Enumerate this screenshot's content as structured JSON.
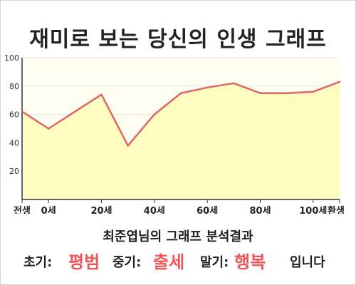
{
  "title": "재미로 보는 당신의 인생 그래프",
  "chart_data": {
    "type": "area",
    "x": [
      -10,
      0,
      20,
      30,
      40,
      50,
      60,
      70,
      80,
      90,
      100,
      110
    ],
    "values": [
      62,
      50,
      74,
      38,
      60,
      75,
      79,
      82,
      75,
      75,
      76,
      83
    ],
    "xlim": [
      -10,
      110
    ],
    "ylim": [
      0,
      100
    ],
    "yticks": [
      0,
      20,
      40,
      60,
      80,
      100
    ],
    "y_tick_labels": [
      "",
      "20",
      "40",
      "60",
      "80",
      "100"
    ],
    "x_tick_positions": [
      -10,
      0,
      20,
      40,
      60,
      80,
      100,
      110
    ],
    "x_tick_labels": [
      "전생",
      "0세",
      "20세",
      "40세",
      "60세",
      "80세",
      "100세",
      "환생"
    ],
    "grid": true,
    "colors": {
      "line": "#e0666a",
      "fill": "#fffcbf",
      "plot_bg": "#fffef0",
      "grid": "#e6e6e6",
      "axis": "#333333"
    }
  },
  "summary": "최준엽님의 그래프 분석결과",
  "result": {
    "early_label": "초기:",
    "early_value": "평범",
    "mid_label": "중기:",
    "mid_value": "출세",
    "late_label": "말기:",
    "late_value": "행복",
    "ending": "입니다",
    "value_color": "#f05656"
  }
}
